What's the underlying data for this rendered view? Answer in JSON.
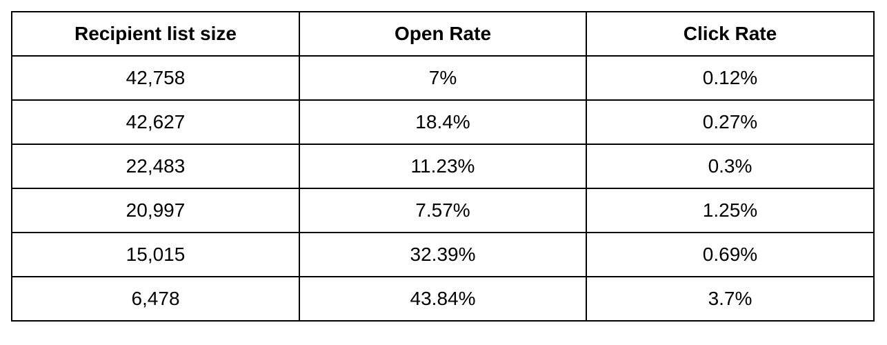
{
  "table": {
    "headers": [
      "Recipient list size",
      "Open Rate",
      "Click Rate"
    ],
    "rows": [
      [
        "42,758",
        "7%",
        "0.12%"
      ],
      [
        "42,627",
        "18.4%",
        "0.27%"
      ],
      [
        "22,483",
        "11.23%",
        "0.3%"
      ],
      [
        "20,997",
        "7.57%",
        "1.25%"
      ],
      [
        "15,015",
        "32.39%",
        "0.69%"
      ],
      [
        "6,478",
        "43.84%",
        "3.7%"
      ]
    ]
  }
}
